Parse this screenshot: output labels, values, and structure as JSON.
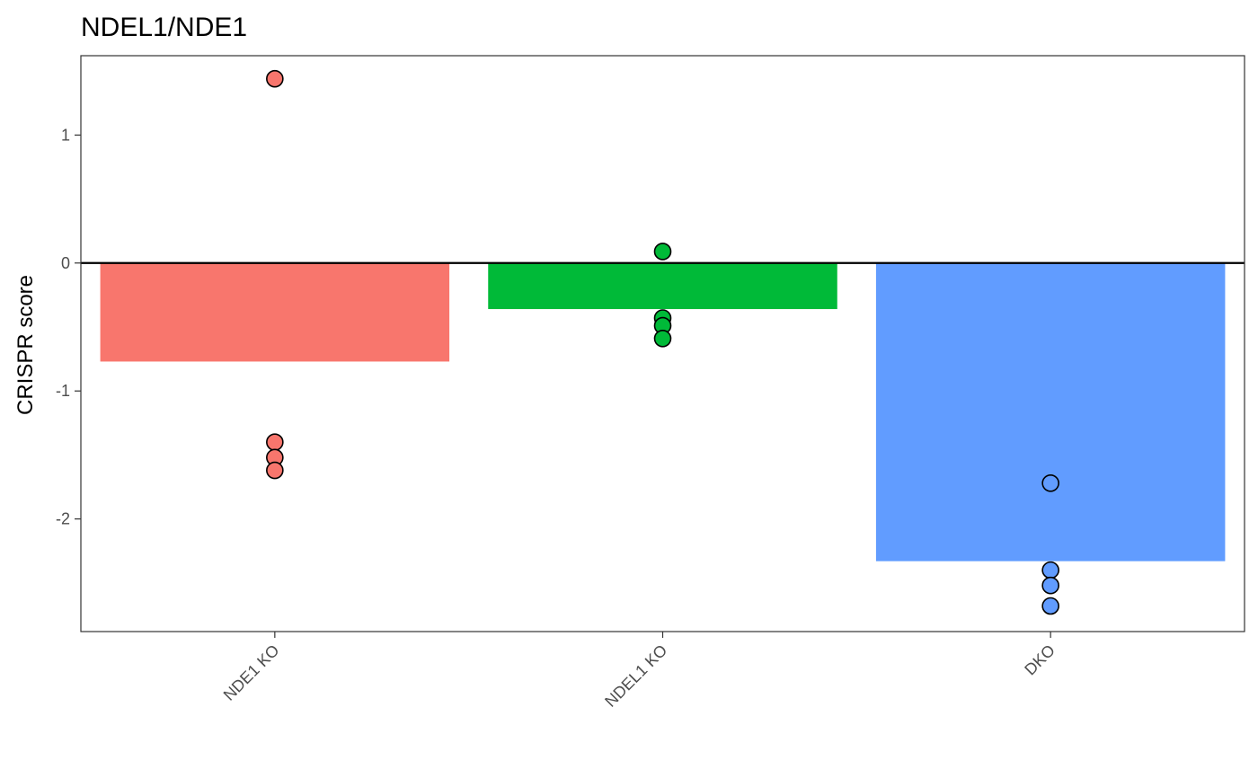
{
  "chart_data": {
    "type": "bar",
    "title": "NDEL1/NDE1",
    "xlabel": "",
    "ylabel": "CRISPR score",
    "categories": [
      "NDE1 KO",
      "NDEL1 KO",
      "DKO"
    ],
    "values": [
      -0.77,
      -0.36,
      -2.33
    ],
    "colors": [
      "#F8766D",
      "#00BA38",
      "#619CFF"
    ],
    "points": [
      [
        1.44,
        -1.4,
        -1.52,
        -1.62
      ],
      [
        0.09,
        -0.43,
        -0.49,
        -0.59
      ],
      [
        -1.72,
        -2.4,
        -2.52,
        -2.68
      ]
    ],
    "ylim": [
      -2.88,
      1.62
    ],
    "yticks": [
      1,
      0,
      -1,
      -2
    ],
    "ytick_labels": [
      "1",
      "0",
      "-1",
      "-2"
    ],
    "reference_line": 0,
    "grid": false,
    "legend": "none"
  }
}
